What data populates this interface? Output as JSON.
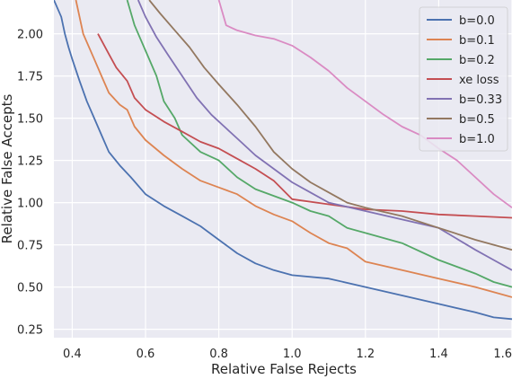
{
  "chart_data": {
    "type": "line",
    "xlabel": "Relative False Rejects",
    "ylabel": "Relative False Accepts",
    "xlim": [
      0.35,
      1.6
    ],
    "ylim": [
      0.2,
      2.2
    ],
    "x_ticks": [
      "0.4",
      "0.6",
      "0.8",
      "1.0",
      "1.2",
      "1.4",
      "1.6"
    ],
    "y_ticks": [
      "0.25",
      "0.50",
      "0.75",
      "1.00",
      "1.25",
      "1.50",
      "1.75",
      "2.00"
    ],
    "grid": true,
    "legend_position": "top-right",
    "series": [
      {
        "name": "b=0.0",
        "color": "#4c72b0",
        "points": [
          [
            0.35,
            2.2
          ],
          [
            0.37,
            2.1
          ],
          [
            0.38,
            2.0
          ],
          [
            0.39,
            1.92
          ],
          [
            0.4,
            1.85
          ],
          [
            0.42,
            1.72
          ],
          [
            0.44,
            1.6
          ],
          [
            0.46,
            1.5
          ],
          [
            0.48,
            1.4
          ],
          [
            0.5,
            1.3
          ],
          [
            0.53,
            1.22
          ],
          [
            0.56,
            1.15
          ],
          [
            0.6,
            1.05
          ],
          [
            0.65,
            0.98
          ],
          [
            0.7,
            0.92
          ],
          [
            0.75,
            0.86
          ],
          [
            0.8,
            0.78
          ],
          [
            0.85,
            0.7
          ],
          [
            0.9,
            0.64
          ],
          [
            0.95,
            0.6
          ],
          [
            1.0,
            0.57
          ],
          [
            1.1,
            0.55
          ],
          [
            1.2,
            0.5
          ],
          [
            1.3,
            0.45
          ],
          [
            1.4,
            0.4
          ],
          [
            1.5,
            0.35
          ],
          [
            1.55,
            0.32
          ],
          [
            1.6,
            0.31
          ]
        ]
      },
      {
        "name": "b=0.1",
        "color": "#dd8452",
        "points": [
          [
            0.41,
            2.2
          ],
          [
            0.43,
            2.0
          ],
          [
            0.46,
            1.85
          ],
          [
            0.48,
            1.75
          ],
          [
            0.5,
            1.65
          ],
          [
            0.53,
            1.58
          ],
          [
            0.55,
            1.55
          ],
          [
            0.57,
            1.45
          ],
          [
            0.6,
            1.37
          ],
          [
            0.65,
            1.28
          ],
          [
            0.7,
            1.2
          ],
          [
            0.75,
            1.13
          ],
          [
            0.8,
            1.09
          ],
          [
            0.85,
            1.05
          ],
          [
            0.9,
            0.98
          ],
          [
            0.95,
            0.93
          ],
          [
            1.0,
            0.89
          ],
          [
            1.05,
            0.82
          ],
          [
            1.1,
            0.76
          ],
          [
            1.15,
            0.73
          ],
          [
            1.2,
            0.65
          ],
          [
            1.3,
            0.6
          ],
          [
            1.4,
            0.55
          ],
          [
            1.5,
            0.5
          ],
          [
            1.55,
            0.47
          ],
          [
            1.6,
            0.44
          ]
        ]
      },
      {
        "name": "b=0.2",
        "color": "#55a868",
        "points": [
          [
            0.55,
            2.2
          ],
          [
            0.57,
            2.05
          ],
          [
            0.6,
            1.9
          ],
          [
            0.63,
            1.75
          ],
          [
            0.65,
            1.6
          ],
          [
            0.68,
            1.5
          ],
          [
            0.7,
            1.4
          ],
          [
            0.75,
            1.3
          ],
          [
            0.8,
            1.25
          ],
          [
            0.85,
            1.15
          ],
          [
            0.9,
            1.08
          ],
          [
            0.95,
            1.04
          ],
          [
            1.0,
            1.0
          ],
          [
            1.05,
            0.95
          ],
          [
            1.1,
            0.92
          ],
          [
            1.15,
            0.85
          ],
          [
            1.2,
            0.82
          ],
          [
            1.3,
            0.76
          ],
          [
            1.4,
            0.66
          ],
          [
            1.5,
            0.58
          ],
          [
            1.55,
            0.53
          ],
          [
            1.6,
            0.5
          ]
        ]
      },
      {
        "name": "xe loss",
        "color": "#c44e52",
        "points": [
          [
            0.47,
            2.0
          ],
          [
            0.5,
            1.88
          ],
          [
            0.52,
            1.8
          ],
          [
            0.55,
            1.72
          ],
          [
            0.57,
            1.62
          ],
          [
            0.6,
            1.55
          ],
          [
            0.65,
            1.48
          ],
          [
            0.7,
            1.42
          ],
          [
            0.75,
            1.36
          ],
          [
            0.8,
            1.32
          ],
          [
            0.85,
            1.26
          ],
          [
            0.9,
            1.2
          ],
          [
            0.95,
            1.13
          ],
          [
            1.0,
            1.02
          ],
          [
            1.1,
            0.99
          ],
          [
            1.2,
            0.96
          ],
          [
            1.3,
            0.95
          ],
          [
            1.4,
            0.93
          ],
          [
            1.5,
            0.92
          ],
          [
            1.6,
            0.91
          ]
        ]
      },
      {
        "name": "b=0.33",
        "color": "#8172b3",
        "points": [
          [
            0.58,
            2.2
          ],
          [
            0.6,
            2.1
          ],
          [
            0.63,
            1.98
          ],
          [
            0.66,
            1.88
          ],
          [
            0.7,
            1.75
          ],
          [
            0.74,
            1.62
          ],
          [
            0.78,
            1.52
          ],
          [
            0.82,
            1.44
          ],
          [
            0.86,
            1.36
          ],
          [
            0.9,
            1.28
          ],
          [
            0.95,
            1.2
          ],
          [
            1.0,
            1.12
          ],
          [
            1.05,
            1.06
          ],
          [
            1.1,
            1.0
          ],
          [
            1.2,
            0.95
          ],
          [
            1.3,
            0.9
          ],
          [
            1.4,
            0.85
          ],
          [
            1.5,
            0.72
          ],
          [
            1.55,
            0.66
          ],
          [
            1.6,
            0.6
          ]
        ]
      },
      {
        "name": "b=0.5",
        "color": "#937860",
        "points": [
          [
            0.61,
            2.2
          ],
          [
            0.64,
            2.12
          ],
          [
            0.68,
            2.02
          ],
          [
            0.72,
            1.92
          ],
          [
            0.76,
            1.8
          ],
          [
            0.8,
            1.7
          ],
          [
            0.85,
            1.58
          ],
          [
            0.9,
            1.45
          ],
          [
            0.95,
            1.3
          ],
          [
            1.0,
            1.2
          ],
          [
            1.05,
            1.12
          ],
          [
            1.1,
            1.06
          ],
          [
            1.15,
            1.0
          ],
          [
            1.2,
            0.97
          ],
          [
            1.3,
            0.92
          ],
          [
            1.4,
            0.85
          ],
          [
            1.5,
            0.78
          ],
          [
            1.55,
            0.75
          ],
          [
            1.6,
            0.72
          ]
        ]
      },
      {
        "name": "b=1.0",
        "color": "#da8bc3",
        "points": [
          [
            0.8,
            2.2
          ],
          [
            0.82,
            2.05
          ],
          [
            0.85,
            2.02
          ],
          [
            0.9,
            1.99
          ],
          [
            0.95,
            1.97
          ],
          [
            1.0,
            1.93
          ],
          [
            1.05,
            1.86
          ],
          [
            1.1,
            1.78
          ],
          [
            1.15,
            1.68
          ],
          [
            1.2,
            1.6
          ],
          [
            1.25,
            1.52
          ],
          [
            1.3,
            1.45
          ],
          [
            1.35,
            1.4
          ],
          [
            1.4,
            1.32
          ],
          [
            1.45,
            1.25
          ],
          [
            1.5,
            1.15
          ],
          [
            1.55,
            1.05
          ],
          [
            1.6,
            0.97
          ]
        ]
      }
    ]
  }
}
